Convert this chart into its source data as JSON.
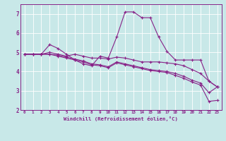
{
  "xlabel": "Windchill (Refroidissement éolien,°C)",
  "bg_color": "#c8e8e8",
  "line_color": "#882288",
  "xlim": [
    -0.5,
    23.5
  ],
  "ylim": [
    2,
    7.5
  ],
  "xticks": [
    0,
    1,
    2,
    3,
    4,
    5,
    6,
    7,
    8,
    9,
    10,
    11,
    12,
    13,
    14,
    15,
    16,
    17,
    18,
    19,
    20,
    21,
    22,
    23
  ],
  "yticks": [
    2,
    3,
    4,
    5,
    6,
    7
  ],
  "series": [
    [
      4.9,
      4.9,
      4.9,
      5.4,
      5.2,
      4.9,
      4.6,
      4.4,
      4.3,
      4.8,
      4.7,
      5.8,
      7.1,
      7.1,
      6.8,
      6.8,
      5.8,
      5.05,
      4.6,
      4.6,
      4.6,
      4.6,
      3.5,
      3.2
    ],
    [
      4.9,
      4.9,
      4.9,
      5.0,
      4.9,
      4.8,
      4.9,
      4.8,
      4.7,
      4.7,
      4.65,
      4.75,
      4.7,
      4.6,
      4.5,
      4.5,
      4.5,
      4.45,
      4.4,
      4.3,
      4.1,
      3.9,
      3.5,
      3.2
    ],
    [
      4.9,
      4.9,
      4.9,
      4.9,
      4.85,
      4.75,
      4.65,
      4.55,
      4.4,
      4.35,
      4.25,
      4.5,
      4.4,
      4.3,
      4.2,
      4.1,
      4.05,
      4.0,
      3.9,
      3.75,
      3.55,
      3.4,
      2.9,
      3.2
    ],
    [
      4.9,
      4.9,
      4.9,
      4.9,
      4.8,
      4.7,
      4.6,
      4.5,
      4.35,
      4.3,
      4.2,
      4.45,
      4.35,
      4.25,
      4.15,
      4.05,
      4.0,
      3.95,
      3.8,
      3.65,
      3.45,
      3.3,
      2.45,
      2.5
    ]
  ]
}
